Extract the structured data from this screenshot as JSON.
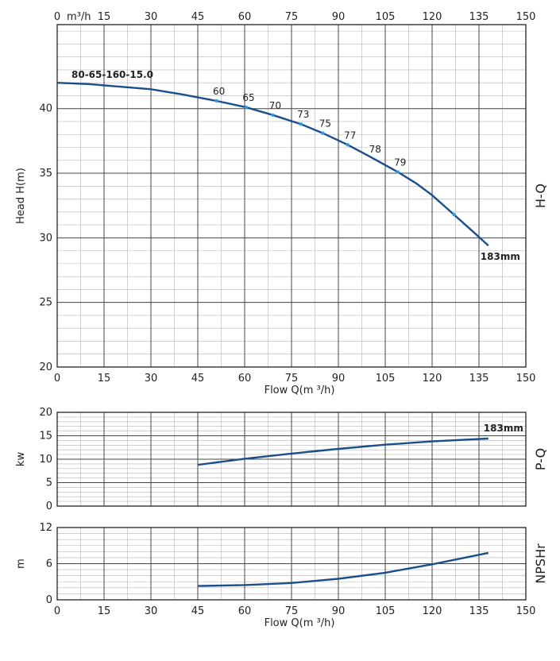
{
  "chart_data": [
    {
      "id": "hq",
      "type": "line",
      "side_title": "H-Q",
      "ylabel": "Head H(m)",
      "xlabel": "Flow Q(m ³/h)",
      "top_axis_unit": "m³/h",
      "xlim": [
        0,
        150
      ],
      "ylim": [
        20,
        46.5
      ],
      "x_ticks": [
        0,
        15,
        30,
        45,
        60,
        75,
        90,
        105,
        120,
        135,
        150
      ],
      "y_ticks": [
        20,
        25,
        30,
        35,
        40
      ],
      "series": [
        {
          "name": "80-65-160-15.0",
          "end_label": "183mm",
          "points": [
            [
              0,
              42.0
            ],
            [
              10,
              41.9
            ],
            [
              20,
              41.7
            ],
            [
              30,
              41.5
            ],
            [
              40,
              41.1
            ],
            [
              51,
              40.6
            ],
            [
              60.5,
              40.1
            ],
            [
              69,
              39.5
            ],
            [
              78,
              38.8
            ],
            [
              85,
              38.1
            ],
            [
              93,
              37.2
            ],
            [
              100,
              36.3
            ],
            [
              109,
              35.1
            ],
            [
              115,
              34.2
            ],
            [
              120,
              33.3
            ],
            [
              127,
              31.8
            ],
            [
              133,
              30.5
            ],
            [
              138,
              29.4
            ]
          ]
        }
      ],
      "efficiency_points": [
        {
          "label": "60",
          "x": 51,
          "y": 40.6
        },
        {
          "label": "65",
          "x": 60.5,
          "y": 40.1
        },
        {
          "label": "70",
          "x": 69,
          "y": 39.5
        },
        {
          "label": "73",
          "x": 78,
          "y": 38.8
        },
        {
          "label": "75",
          "x": 85,
          "y": 38.1
        },
        {
          "label": "77",
          "x": 93,
          "y": 37.2
        },
        {
          "label": "78",
          "x": null,
          "y": null
        },
        {
          "label": "79",
          "x": 109,
          "y": 35.1
        },
        {
          "label": "",
          "x": 127,
          "y": 31.8
        }
      ]
    },
    {
      "id": "pq",
      "type": "line",
      "side_title": "P-Q",
      "ylabel": "kw",
      "xlim": [
        0,
        150
      ],
      "ylim": [
        0,
        20
      ],
      "x_ticks": [],
      "y_ticks": [
        0,
        5,
        10,
        15,
        20
      ],
      "series": [
        {
          "name": "",
          "end_label": "183mm",
          "points": [
            [
              45,
              8.8
            ],
            [
              60,
              10.1
            ],
            [
              75,
              11.2
            ],
            [
              90,
              12.2
            ],
            [
              105,
              13.1
            ],
            [
              120,
              13.8
            ],
            [
              138,
              14.4
            ]
          ]
        }
      ]
    },
    {
      "id": "npsh",
      "type": "line",
      "side_title": "NPSHr",
      "ylabel": "m",
      "xlabel": "Flow Q(m ³/h)",
      "xlim": [
        0,
        150
      ],
      "ylim": [
        0,
        12
      ],
      "x_ticks": [
        0,
        15,
        30,
        45,
        60,
        75,
        90,
        105,
        120,
        135,
        150
      ],
      "y_ticks": [
        0,
        6,
        12
      ],
      "series": [
        {
          "name": "",
          "points": [
            [
              45,
              2.3
            ],
            [
              60,
              2.45
            ],
            [
              75,
              2.8
            ],
            [
              90,
              3.5
            ],
            [
              105,
              4.5
            ],
            [
              120,
              5.9
            ],
            [
              138,
              7.8
            ]
          ]
        }
      ]
    }
  ],
  "colors": {
    "curve": "#1a4f8c",
    "marker": "#2f9be0",
    "grid_major": "#444444",
    "grid_minor": "#b5b5b5"
  }
}
